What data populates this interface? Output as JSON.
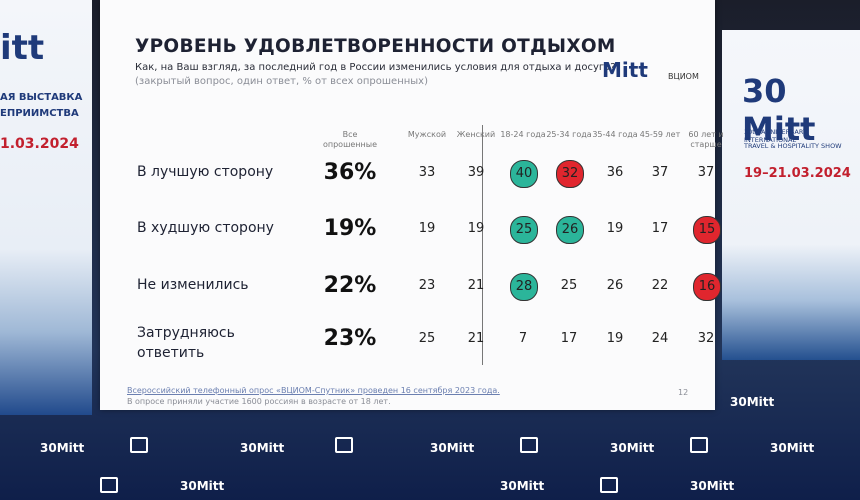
{
  "slide": {
    "title": "УРОВЕНЬ УДОВЛЕТВОРЕННОСТИ ОТДЫХОМ",
    "question": "Как, на Ваш взгляд, за последний год в России изменились условия для отдыха и досуга?",
    "note": "(закрытый вопрос, один ответ, % от всех опрошенных)",
    "logos": [
      "Mitt",
      "ВЦИОМ"
    ],
    "table": {
      "headers": [
        "Все опрошенные",
        "Мужской",
        "Женский",
        "18-24 года",
        "25-34 года",
        "35-44 года",
        "45-59 лет",
        "60 лет и старше"
      ],
      "rows": [
        {
          "label": "В лучшую сторону",
          "cells": [
            "36%",
            "33",
            "39",
            "40",
            "32",
            "36",
            "37",
            "37"
          ],
          "highlight": [
            null,
            null,
            null,
            "green",
            "red",
            null,
            null,
            null
          ]
        },
        {
          "label": "В худшую сторону",
          "cells": [
            "19%",
            "19",
            "19",
            "25",
            "26",
            "19",
            "17",
            "15"
          ],
          "highlight": [
            null,
            null,
            null,
            "green",
            "green",
            null,
            null,
            "red"
          ]
        },
        {
          "label": "Не изменились",
          "cells": [
            "22%",
            "23",
            "21",
            "28",
            "25",
            "26",
            "22",
            "16"
          ],
          "highlight": [
            null,
            null,
            null,
            "green",
            null,
            null,
            null,
            "red"
          ]
        },
        {
          "label": "Затрудняюсь ответить",
          "cells": [
            "23%",
            "25",
            "21",
            "7",
            "17",
            "19",
            "24",
            "32"
          ],
          "highlight": [
            null,
            null,
            null,
            null,
            null,
            null,
            null,
            null
          ]
        }
      ]
    },
    "footer": [
      "Всероссийский телефонный опрос «ВЦИОМ-Спутник» проведен 16 сентября 2023 года.",
      "В опросе приняли участие 1600 россиян в возрасте от 18 лет."
    ],
    "page": "12"
  },
  "left_screen": {
    "logo": "itt",
    "lines": [
      "АЯ ВЫСТАВКА",
      "ЕПРИИМСТВА"
    ],
    "date": "1.03.2024"
  },
  "right_screen": {
    "logo": "30 Mitt",
    "lines": [
      "30th ANNIVERSARY INTERNATIONAL",
      "TRAVEL & HOSPITALITY SHOW"
    ],
    "date": "19–21.03.2024"
  },
  "led_logo": "30Mitt"
}
